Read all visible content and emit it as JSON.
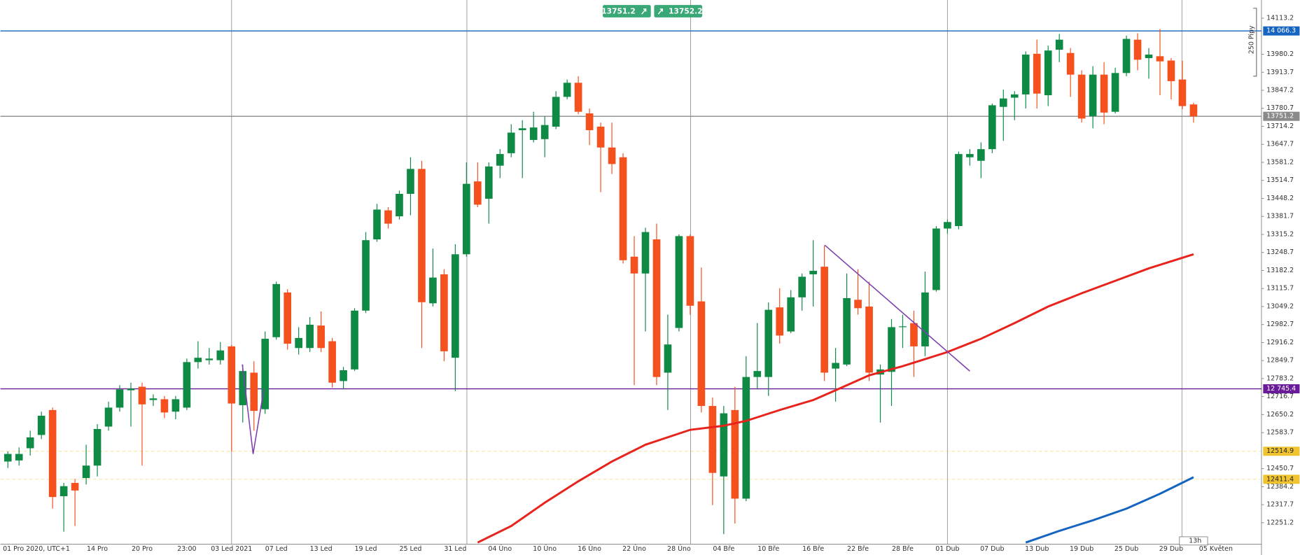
{
  "chart_data": {
    "type": "candlestick",
    "up_color": "#0e8a45",
    "down_color": "#f4511e",
    "ylim": [
      12171.7,
      14180.5
    ],
    "yticks": [
      14113.2,
      13980.2,
      13913.7,
      13847.2,
      13780.7,
      13714.2,
      13647.7,
      13581.2,
      13514.7,
      13448.2,
      13381.7,
      13315.2,
      13248.7,
      13182.2,
      13115.7,
      13049.2,
      12982.7,
      12916.2,
      12849.7,
      12783.2,
      12716.7,
      12650.2,
      12583.7,
      12450.7,
      12384.2,
      12317.7,
      12251.2
    ],
    "categories": [
      null,
      null,
      "01 Pro 2020, UTC+1",
      null,
      null,
      null,
      null,
      null,
      "14 Pro",
      null,
      null,
      null,
      "20 Pro",
      null,
      null,
      null,
      "23:00",
      null,
      null,
      null,
      "03 Led 2021",
      null,
      null,
      null,
      "07 Led",
      null,
      null,
      null,
      "13 Led",
      null,
      null,
      null,
      "19 Led",
      null,
      null,
      null,
      "25 Led",
      null,
      null,
      null,
      "31 Led",
      null,
      null,
      null,
      "04 Úno",
      null,
      null,
      null,
      "10 Úno",
      null,
      null,
      null,
      "16 Úno",
      null,
      null,
      null,
      "22 Úno",
      null,
      null,
      null,
      "28 Úno",
      null,
      null,
      null,
      "04 Bře",
      null,
      null,
      null,
      "10 Bře",
      null,
      null,
      null,
      "16 Bře",
      null,
      null,
      null,
      "22 Bře",
      null,
      null,
      null,
      "28 Bře",
      null,
      null,
      null,
      "01 Dub",
      null,
      null,
      null,
      "07 Dub",
      null,
      null,
      null,
      "13 Dub",
      null,
      null,
      null,
      "19 Dub",
      null,
      null,
      null,
      "25 Dub",
      null,
      null,
      null,
      "29 Dub",
      null,
      null,
      null,
      "05 Květen"
    ],
    "open": [
      12477,
      12481,
      12526,
      12575,
      12667,
      12349,
      12398,
      12416,
      12462,
      12606,
      12676,
      12740,
      12753,
      12704,
      12707,
      12661,
      12676,
      12844,
      12851,
      12851,
      12902,
      12685,
      12805,
      12670,
      12936,
      13101,
      12896,
      12896,
      12979,
      12921,
      12774,
      12817,
      13034,
      13297,
      13404,
      13382,
      13465,
      13557,
      13061,
      13168,
      12860,
      13242,
      13511,
      13447,
      13569,
      13615,
      13700,
      13664,
      13667,
      13713,
      13823,
      13875,
      13762,
      13713,
      13636,
      13600,
      13233,
      13171,
      13297,
      12805,
      12970,
      13309,
      13068,
      12682,
      12422,
      12667,
      12340,
      12789,
      12789,
      13046,
      12957,
      13083,
      13168,
      13196,
      12820,
      12835,
      13074,
      13049,
      12798,
      12808,
      12973,
      12988,
      12902,
      13110,
      13337,
      13346,
      13600,
      13587,
      13630,
      13786,
      13820,
      13832,
      13982,
      13829,
      13997,
      13985,
      13905,
      13752,
      13905,
      13768,
      13911,
      14034,
      13966,
      13973,
      13957,
      13887,
      13795,
      null,
      null
    ],
    "high": [
      12514,
      12529,
      12591,
      12661,
      12676,
      12398,
      12413,
      12539,
      12615,
      12698,
      12759,
      12768,
      12768,
      12725,
      12719,
      12719,
      12857,
      12921,
      12896,
      12918,
      12908,
      12835,
      12847,
      12957,
      13141,
      13113,
      12973,
      13010,
      13031,
      12933,
      12826,
      13043,
      13324,
      13428,
      13416,
      13477,
      13600,
      13587,
      13263,
      13187,
      13279,
      13581,
      13581,
      13581,
      13630,
      13722,
      13737,
      13768,
      13752,
      13844,
      13887,
      13899,
      13780,
      13728,
      13728,
      13615,
      13309,
      13340,
      13355,
      13019,
      13315,
      13315,
      13193,
      12713,
      12682,
      12753,
      12866,
      12988,
      13064,
      13117,
      13110,
      13171,
      13294,
      13275,
      12896,
      13171,
      13187,
      13141,
      12835,
      13003,
      13019,
      13034,
      13178,
      13346,
      13370,
      13621,
      13630,
      13655,
      13798,
      13850,
      13844,
      13991,
      14034,
      14012,
      14055,
      14003,
      13921,
      13936,
      13951,
      13930,
      14049,
      14058,
      14003,
      14073,
      13966,
      13957,
      13801,
      null,
      null
    ],
    "low": [
      12453,
      12462,
      12499,
      12560,
      12303,
      12218,
      12239,
      12392,
      12422,
      12591,
      12661,
      12606,
      12462,
      12682,
      12637,
      12633,
      12667,
      12820,
      12835,
      12835,
      12514,
      12621,
      12591,
      12653,
      12927,
      12890,
      12872,
      12881,
      12881,
      12750,
      12743,
      12811,
      13025,
      13288,
      13337,
      13370,
      13386,
      12896,
      13049,
      12847,
      12737,
      13233,
      13416,
      13355,
      13523,
      13600,
      13523,
      13655,
      13600,
      13704,
      13814,
      13759,
      13645,
      13471,
      13538,
      13208,
      12759,
      12957,
      12759,
      12667,
      12957,
      13019,
      12658,
      12316,
      12209,
      12248,
      12331,
      12743,
      12719,
      12912,
      12951,
      13034,
      13049,
      12774,
      12698,
      12829,
      13019,
      12774,
      12621,
      12682,
      12896,
      12789,
      12866,
      13104,
      13318,
      13334,
      13569,
      13523,
      13615,
      13661,
      13737,
      13780,
      13780,
      13789,
      13951,
      13823,
      13728,
      13707,
      13722,
      13762,
      13899,
      13921,
      13890,
      13829,
      13814,
      13777,
      13728,
      null,
      null
    ],
    "close": [
      12505,
      12505,
      12566,
      12646,
      12346,
      12386,
      12370,
      12462,
      12597,
      12676,
      12743,
      12746,
      12688,
      12710,
      12658,
      12707,
      12844,
      12860,
      12857,
      12887,
      12691,
      12811,
      12664,
      12930,
      13132,
      12912,
      12933,
      12982,
      12896,
      12768,
      12814,
      13034,
      13294,
      13407,
      13355,
      13465,
      13557,
      13065,
      13156,
      12884,
      13242,
      13502,
      13425,
      13566,
      13612,
      13691,
      13707,
      13710,
      13719,
      13823,
      13875,
      13768,
      13700,
      13636,
      13575,
      13220,
      13171,
      13324,
      12789,
      12909,
      13309,
      13052,
      12682,
      12435,
      12655,
      12340,
      12789,
      12811,
      13037,
      12942,
      13083,
      13159,
      13181,
      12805,
      12841,
      13080,
      13043,
      12805,
      12817,
      12973,
      12976,
      12902,
      13101,
      13337,
      13361,
      13612,
      13612,
      13630,
      13792,
      13817,
      13832,
      13979,
      13835,
      13994,
      14034,
      13905,
      13743,
      13905,
      13765,
      13911,
      14037,
      13960,
      13979,
      13954,
      13881,
      13789,
      13751.2,
      null,
      null
    ],
    "lines": [
      {
        "color": "#e8231c",
        "x": [
          42,
          45,
          48,
          51,
          54,
          57,
          61,
          64,
          66,
          69,
          72,
          74,
          77,
          80,
          84,
          87,
          90,
          93,
          96,
          99,
          102,
          106
        ],
        "values": [
          12178,
          12239,
          12325,
          12404,
          12477,
          12539,
          12594,
          12609,
          12627,
          12667,
          12704,
          12740,
          12795,
          12829,
          12881,
          12930,
          12988,
          13049,
          13098,
          13144,
          13190,
          13242
        ]
      },
      {
        "color": "#1565c0",
        "x": [
          91,
          94,
          97,
          100,
          103,
          106
        ],
        "values": [
          12178,
          12221,
          12260,
          12303,
          12358,
          12419
        ]
      }
    ],
    "levels": [
      {
        "value": 14066.3,
        "label": "14 066.3",
        "color": "#1565c0"
      },
      {
        "value": 13751.2,
        "color": "#8a8a8a"
      },
      {
        "value": 12745.4,
        "label": "12 745.4",
        "color": "#6a1b9a"
      },
      {
        "value": 12514.9,
        "color": "#f0c330",
        "dashed": true
      },
      {
        "value": 12411.4,
        "color": "#f0c330",
        "dashed": true
      }
    ],
    "sell": 13751.2,
    "buy": 13752.2,
    "ruler_label": "250 Pipy",
    "timer": "13h"
  }
}
